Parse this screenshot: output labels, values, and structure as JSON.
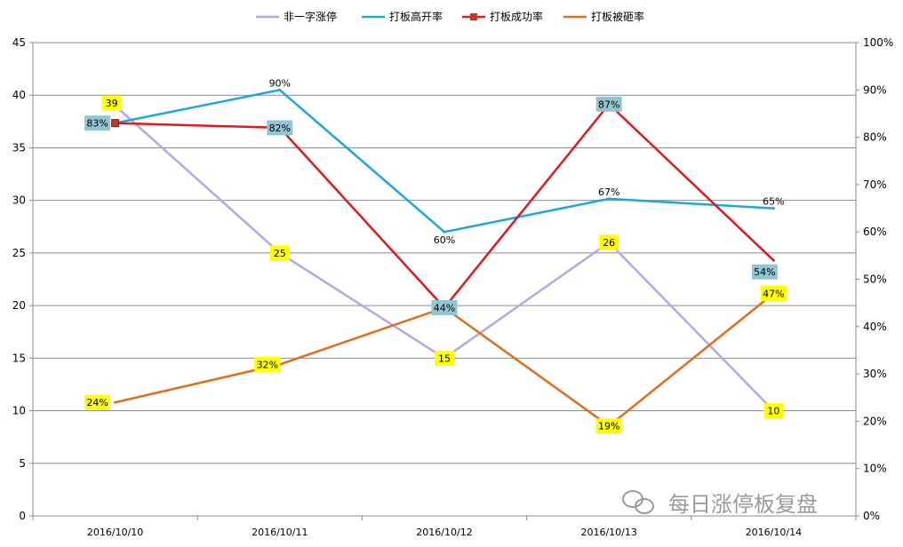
{
  "chart_data": {
    "type": "line",
    "categories": [
      "2016/10/10",
      "2016/10/11",
      "2016/10/12",
      "2016/10/13",
      "2016/10/14"
    ],
    "y_left": {
      "range": [
        0,
        45
      ],
      "ticks": [
        0,
        5,
        10,
        15,
        20,
        25,
        30,
        35,
        40,
        45
      ]
    },
    "y_right": {
      "range": [
        0,
        100
      ],
      "ticks": [
        "0%",
        "10%",
        "20%",
        "30%",
        "40%",
        "50%",
        "60%",
        "70%",
        "80%",
        "90%",
        "100%"
      ]
    },
    "grid": true,
    "legend_position": "top",
    "series": [
      {
        "name": "非一字涨停",
        "axis": "left",
        "color": "#b4a7e8",
        "values": [
          39,
          25,
          15,
          26,
          10
        ],
        "labels": [
          "39",
          "25",
          "15",
          "26",
          "10"
        ],
        "label_box": "#ffff00"
      },
      {
        "name": "打板高开率",
        "axis": "right",
        "color": "#1ea7db",
        "values": [
          83,
          90,
          60,
          67,
          65
        ],
        "labels": [
          "",
          "90%",
          "60%",
          "67%",
          "65%"
        ],
        "label_box": "none"
      },
      {
        "name": "打板成功率",
        "axis": "right",
        "color": "#e0191c",
        "values": [
          83,
          82,
          44,
          87,
          54
        ],
        "labels": [
          "83%",
          "82%",
          "44%",
          "87%",
          "54%"
        ],
        "label_box": "#92c5d3"
      },
      {
        "name": "打板被砸率",
        "axis": "right",
        "color": "#e06d1c",
        "values": [
          24,
          32,
          44,
          19,
          47
        ],
        "labels": [
          "24%",
          "32%",
          "",
          "19%",
          "47%"
        ],
        "label_box": "#ffff00"
      }
    ]
  },
  "watermark": {
    "text": "每日涨停板复盘"
  }
}
